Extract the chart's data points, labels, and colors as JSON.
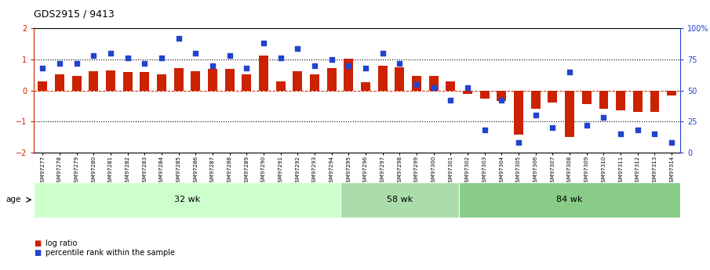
{
  "title": "GDS2915 / 9413",
  "samples": [
    "GSM97277",
    "GSM97278",
    "GSM97279",
    "GSM97280",
    "GSM97281",
    "GSM97282",
    "GSM97283",
    "GSM97284",
    "GSM97285",
    "GSM97286",
    "GSM97287",
    "GSM97288",
    "GSM97289",
    "GSM97290",
    "GSM97291",
    "GSM97292",
    "GSM97293",
    "GSM97294",
    "GSM97295",
    "GSM97296",
    "GSM97297",
    "GSM97298",
    "GSM97299",
    "GSM97300",
    "GSM97301",
    "GSM97302",
    "GSM97303",
    "GSM97304",
    "GSM97305",
    "GSM97306",
    "GSM97307",
    "GSM97308",
    "GSM97309",
    "GSM97310",
    "GSM97311",
    "GSM97312",
    "GSM97313",
    "GSM97314"
  ],
  "log_ratio": [
    0.28,
    0.52,
    0.47,
    0.62,
    0.65,
    0.6,
    0.6,
    0.53,
    0.72,
    0.62,
    0.7,
    0.7,
    0.52,
    1.12,
    0.3,
    0.62,
    0.52,
    0.72,
    1.02,
    0.27,
    0.8,
    0.75,
    0.46,
    0.48,
    0.3,
    -0.1,
    -0.27,
    -0.34,
    -1.42,
    -0.6,
    -0.38,
    -1.5,
    -0.43,
    -0.58,
    -0.65,
    -0.7,
    -0.7,
    -0.17
  ],
  "percentile": [
    68,
    72,
    72,
    78,
    80,
    76,
    72,
    76,
    92,
    80,
    70,
    78,
    68,
    88,
    76,
    84,
    70,
    75,
    70,
    68,
    80,
    72,
    55,
    52,
    42,
    52,
    18,
    42,
    8,
    30,
    20,
    65,
    22,
    28,
    15,
    18,
    15,
    8
  ],
  "groups": [
    {
      "label": "32 wk",
      "start": 0,
      "end": 18
    },
    {
      "label": "58 wk",
      "start": 18,
      "end": 25
    },
    {
      "label": "84 wk",
      "start": 25,
      "end": 38
    }
  ],
  "bar_color": "#cc2200",
  "dot_color": "#2244cc",
  "bar_width": 0.55,
  "ylim": [
    -2,
    2
  ],
  "y2lim": [
    0,
    100
  ],
  "yticks": [
    -2,
    -1,
    0,
    1,
    2
  ],
  "y2ticks": [
    0,
    25,
    50,
    75,
    100
  ],
  "y2ticklabels": [
    "0",
    "25",
    "50",
    "75",
    "100%"
  ],
  "legend_bar_label": "log ratio",
  "legend_dot_label": "percentile rank within the sample",
  "age_label": "age",
  "group_colors": [
    "#ccffcc",
    "#aaddaa",
    "#88cc88"
  ],
  "background_color": "#ffffff"
}
